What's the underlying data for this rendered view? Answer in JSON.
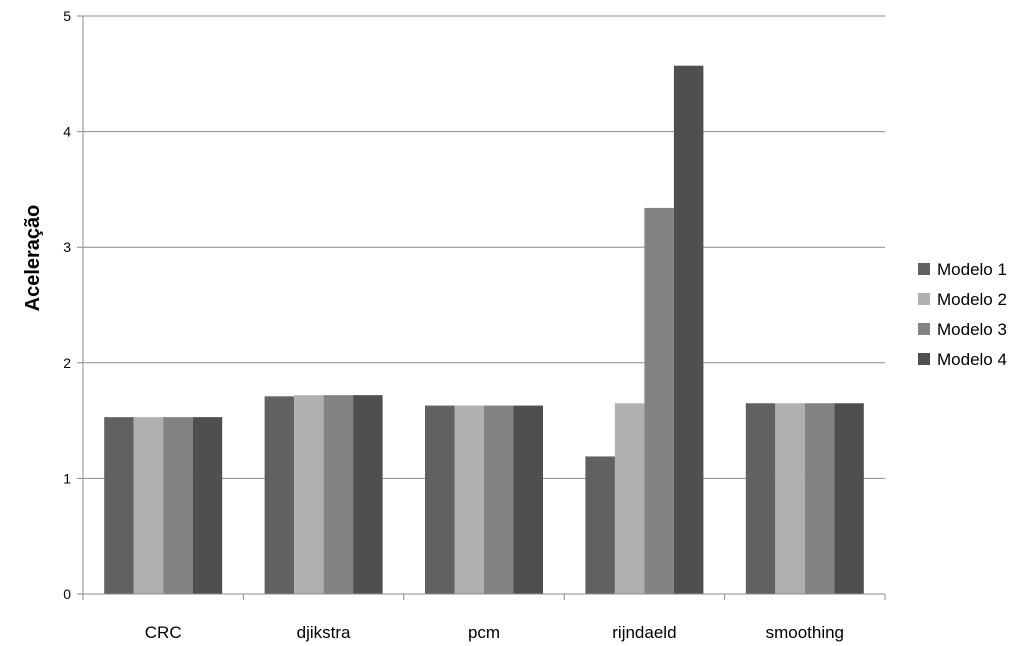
{
  "chart_data": {
    "type": "bar",
    "title": "",
    "xlabel": "",
    "ylabel": "Aceleração",
    "ylim": [
      0,
      5
    ],
    "yticks": [
      0,
      1,
      2,
      3,
      4,
      5
    ],
    "grid": true,
    "legend_position": "right",
    "categories": [
      "CRC",
      "djikstra",
      "pcm",
      "rijndaeld",
      "smoothing"
    ],
    "series": [
      {
        "name": "Modelo 1",
        "color": "#616161",
        "values": [
          1.53,
          1.71,
          1.63,
          1.19,
          1.65
        ]
      },
      {
        "name": "Modelo 2",
        "color": "#b0b0b0",
        "values": [
          1.53,
          1.72,
          1.63,
          1.65,
          1.65
        ]
      },
      {
        "name": "Modelo 3",
        "color": "#838383",
        "values": [
          1.53,
          1.72,
          1.63,
          3.34,
          1.65
        ]
      },
      {
        "name": "Modelo 4",
        "color": "#4f4f4f",
        "values": [
          1.53,
          1.72,
          1.63,
          4.57,
          1.65
        ]
      }
    ]
  }
}
